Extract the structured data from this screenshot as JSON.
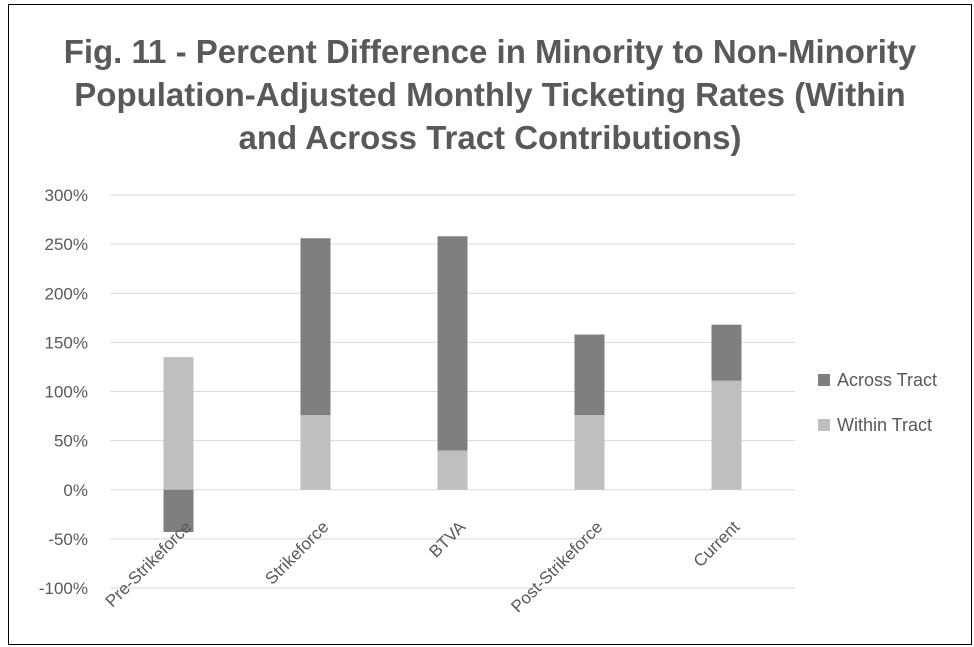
{
  "chart_data": {
    "type": "bar",
    "stacked": true,
    "title": "Fig. 11 - Percent Difference in Minority to Non-Minority Population-Adjusted Monthly Ticketing Rates (Within and Across Tract Contributions)",
    "categories": [
      "Pre-Strikeforce",
      "Strikeforce",
      "BTVA",
      "Post-Strikeforce",
      "Current"
    ],
    "series": [
      {
        "name": "Within Tract",
        "color": "#bfbfbf",
        "values": [
          135,
          76,
          40,
          76,
          111
        ]
      },
      {
        "name": "Across Tract",
        "color": "#7f7f7f",
        "values": [
          -43,
          180,
          218,
          82,
          57
        ]
      }
    ],
    "ylim": [
      -100,
      300
    ],
    "yticks": [
      -100,
      -50,
      0,
      50,
      100,
      150,
      200,
      250,
      300
    ],
    "ytick_labels": [
      "-100%",
      "-50%",
      "0%",
      "50%",
      "100%",
      "150%",
      "200%",
      "250%",
      "300%"
    ],
    "grid": true,
    "legend_position": "right"
  }
}
